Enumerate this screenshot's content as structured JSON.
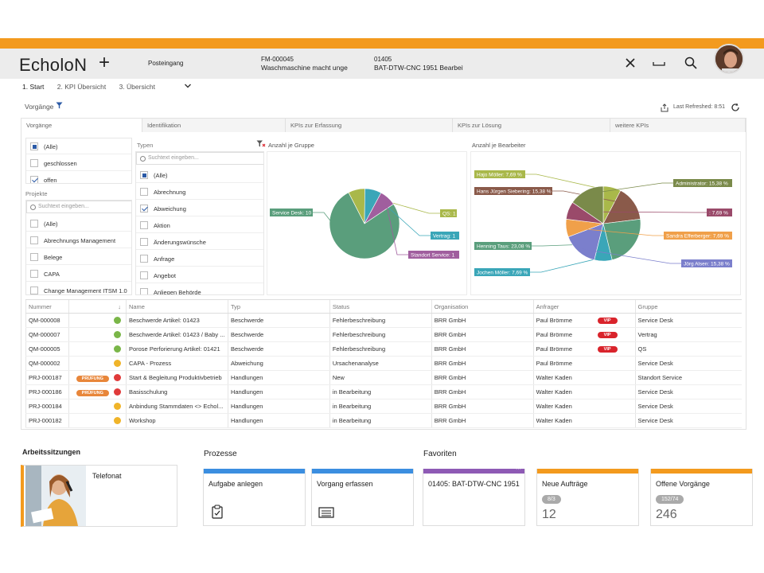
{
  "header": {
    "logo": "EcholoN",
    "add": "+",
    "tabs": [
      {
        "line1": "Posteingang",
        "line2": ""
      },
      {
        "line1": "FM-000045",
        "line2": "Waschmaschine macht unge"
      },
      {
        "line1": "01405",
        "line2": "BAT-DTW-CNC 1951 Bearbeit"
      }
    ]
  },
  "subtabs": [
    "1. Start",
    "2. KPI Übersicht",
    "3. Übersicht"
  ],
  "toolbar": {
    "title": "Vorgänge",
    "refreshed": "Last Refreshed: 8:51"
  },
  "column_tabs": [
    "Vorgänge",
    "Identifikation",
    "KPIs zur Erfassung",
    "KPIs zur Lösung",
    "weitere KPIs"
  ],
  "filters": {
    "vorgaenge": [
      "(Alle)",
      "geschlossen",
      "offen"
    ],
    "projekte_label": "Projekte",
    "projekte_search": "Suchtext eingeben...",
    "projekte": [
      "(Alle)",
      "Abrechnungs Management",
      "Belege",
      "CAPA",
      "Change Management ITSM 1.0"
    ],
    "typen_label": "Typen",
    "typen_search": "Suchtext eingeben...",
    "typen": [
      "(Alle)",
      "Abrechnung",
      "Abweichung",
      "Aktion",
      "Änderungswünsche",
      "Anfrage",
      "Angebot",
      "Anliegen Behörde"
    ]
  },
  "chart_data": [
    {
      "type": "pie",
      "title": "Anzahl je Gruppe",
      "labels": [
        "Service Desk: 10",
        "QS: 1",
        "Vertrag: 1",
        "Standort Service: 1"
      ],
      "categories": [
        "Service Desk",
        "QS",
        "Vertrag",
        "Standort Service"
      ],
      "values": [
        10,
        1,
        1,
        1
      ],
      "colors": [
        "#5a9e7c",
        "#a9b84a",
        "#3aa6b8",
        "#a05e9e"
      ]
    },
    {
      "type": "pie",
      "title": "Anzahl je Bearbeiter",
      "labels": [
        "Hajo Möller: 7,69 %",
        "Hans Jürgen Siebering: 15,38 %",
        "Henning Taus: 23,08 %",
        "Jochen Möller: 7,69 %",
        "Jörg Alsen: 15,38 %",
        "Sandra Efferberger: 7,69 %",
        ": 7,69 %",
        "Administrator: 15,38 %"
      ],
      "categories": [
        "Hajo Möller",
        "Hans Jürgen Siebering",
        "Henning Taus",
        "Jochen Möller",
        "Jörg Alsen",
        "Sandra Efferberger",
        "",
        "Administrator"
      ],
      "values": [
        7.69,
        15.38,
        23.08,
        7.69,
        15.38,
        7.69,
        7.69,
        15.38
      ],
      "colors": [
        "#a9b84a",
        "#8a5a4a",
        "#5a9e7c",
        "#3aa6b8",
        "#7b7fcc",
        "#f0a04a",
        "#9a4a6a",
        "#7a8a4a"
      ]
    }
  ],
  "table": {
    "headers": [
      "Nummer",
      "",
      "Name",
      "Typ",
      "Status",
      "Organisation",
      "Anfrager",
      "Gruppe"
    ],
    "rows": [
      {
        "nummer": "QM-000008",
        "badge": "",
        "dot": "#7ab648",
        "name": "Beschwerde Artikel: 01423",
        "typ": "Beschwerde",
        "status": "Fehlerbeschreibung",
        "org": "BRR GmbH",
        "anfrager": "Paul Brömme",
        "vip": "VIP",
        "gruppe": "Service Desk"
      },
      {
        "nummer": "QM-000007",
        "badge": "",
        "dot": "#7ab648",
        "name": "Beschwerde Artikel: 01423 / Baby ...",
        "typ": "Beschwerde",
        "status": "Fehlerbeschreibung",
        "org": "BRR GmbH",
        "anfrager": "Paul Brömme",
        "vip": "VIP",
        "gruppe": "Vertrag"
      },
      {
        "nummer": "QM-000005",
        "badge": "",
        "dot": "#7ab648",
        "name": "Porose Perforierung Artikel: 01421",
        "typ": "Beschwerde",
        "status": "Fehlerbeschreibung",
        "org": "BRR GmbH",
        "anfrager": "Paul Brömme",
        "vip": "VIP",
        "gruppe": "QS"
      },
      {
        "nummer": "QM-000002",
        "badge": "",
        "dot": "#f0b429",
        "name": "CAPA - Prozess",
        "typ": "Abweichung",
        "status": "Ursachenanalyse",
        "org": "BRR GmbH",
        "anfrager": "Paul Brömme",
        "vip": "",
        "gruppe": "Service Desk"
      },
      {
        "nummer": "PRJ-000187",
        "badge": "PRÜFUNG",
        "dot": "#e03a3a",
        "name": "Start & Begleitung Produktivbetrieb",
        "typ": "Handlungen",
        "status": "New",
        "org": "BRR GmbH",
        "anfrager": "Walter Kaden",
        "vip": "",
        "gruppe": "Standort Service"
      },
      {
        "nummer": "PRJ-000186",
        "badge": "PRÜFUNG",
        "dot": "#e03a3a",
        "name": "Basisschulung",
        "typ": "Handlungen",
        "status": "in Bearbeitung",
        "org": "BRR GmbH",
        "anfrager": "Walter Kaden",
        "vip": "",
        "gruppe": "Service Desk"
      },
      {
        "nummer": "PRJ-000184",
        "badge": "",
        "dot": "#f0b429",
        "name": "Anbindung Stammdaten <> Echol...",
        "typ": "Handlungen",
        "status": "in Bearbeitung",
        "org": "BRR GmbH",
        "anfrager": "Walter Kaden",
        "vip": "",
        "gruppe": "Service Desk"
      },
      {
        "nummer": "PRJ-000182",
        "badge": "",
        "dot": "#f0b429",
        "name": "Workshop",
        "typ": "Handlungen",
        "status": "in Bearbeitung",
        "org": "BRR GmbH",
        "anfrager": "Walter Kaden",
        "vip": "",
        "gruppe": "Service Desk"
      }
    ]
  },
  "bottom": {
    "arbeits_title": "Arbeitssitzungen",
    "arbeits_item": "Telefonat",
    "prozesse_title": "Prozesse",
    "favoriten_title": "Favoriten",
    "tiles": [
      {
        "title": "Aufgabe anlegen",
        "color": "#3b8ee0",
        "icon": "clipboard-icon"
      },
      {
        "title": "Vorgang erfassen",
        "color": "#3b8ee0",
        "icon": "form-icon"
      },
      {
        "title": "01405: BAT-DTW-CNC 1951",
        "color": "#8e5ab5",
        "icon": ""
      },
      {
        "title": "Neue Aufträge",
        "color": "#f39a1e",
        "pill": "8/3",
        "value": "12"
      },
      {
        "title": "Offene Vorgänge",
        "color": "#f39a1e",
        "pill": "152/74",
        "value": "246"
      }
    ]
  }
}
